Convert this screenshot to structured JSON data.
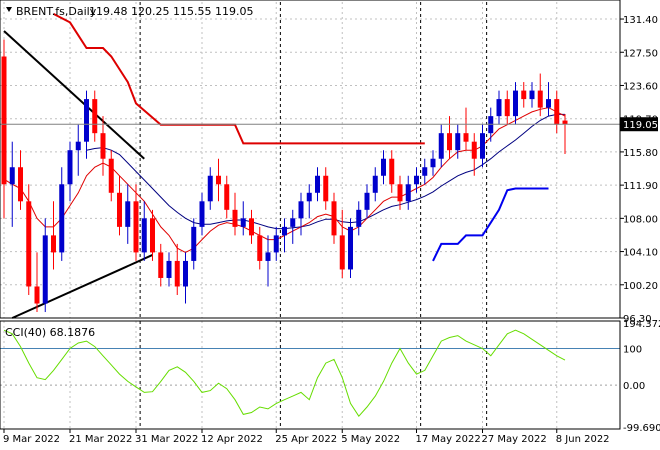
{
  "header": {
    "symbol": "BRENT.fs,Daily",
    "ohlc": "119.48 120.25 115.55 119.05"
  },
  "indicator": {
    "label": "CCI(40) 68.1876"
  },
  "colors": {
    "bull": "#0000cc",
    "bear": "#ff0000",
    "ma_short": "#e00000",
    "ma_long": "#000080",
    "cci": "#66dd00",
    "stop_red": "#dd0000",
    "stop_blue": "#0000ee",
    "trend": "#000000",
    "grid": "#c0c0c0",
    "price_box": "#000000"
  },
  "chart_data": [
    {
      "type": "candlestick",
      "ylim": [
        96.3,
        133.4
      ],
      "y_ticks": [
        "131.40",
        "127.50",
        "123.60",
        "119.70",
        "115.80",
        "111.90",
        "108.00",
        "104.10",
        "100.20",
        "96.30"
      ],
      "x_ticks": [
        "9 Mar 2022",
        "21 Mar 2022",
        "31 Mar 2022",
        "12 Apr 2022",
        "25 Apr 2022",
        "5 May 2022",
        "17 May 2022",
        "27 May 2022",
        "8 Jun 2022"
      ],
      "x_tick_index": [
        0,
        8,
        16,
        24,
        33,
        41,
        50,
        58,
        67
      ],
      "current_price": "119.05",
      "candles": [
        [
          127,
          129,
          108,
          112
        ],
        [
          112,
          117,
          107,
          114
        ],
        [
          114,
          116,
          109,
          110
        ],
        [
          110,
          112,
          99,
          100
        ],
        [
          100,
          104,
          97,
          98
        ],
        [
          98,
          108,
          97,
          106
        ],
        [
          106,
          110,
          102,
          104
        ],
        [
          104,
          114,
          103,
          112
        ],
        [
          112,
          117,
          110,
          116
        ],
        [
          116,
          119,
          113,
          117
        ],
        [
          117,
          123,
          115,
          122
        ],
        [
          122,
          123,
          117,
          118
        ],
        [
          118,
          120,
          113,
          115
        ],
        [
          115,
          116,
          110,
          111
        ],
        [
          111,
          113,
          106,
          107
        ],
        [
          107,
          112,
          105,
          110
        ],
        [
          110,
          112,
          103,
          104
        ],
        [
          104,
          110,
          103,
          108
        ],
        [
          108,
          109,
          103,
          104
        ],
        [
          104,
          105,
          100,
          101
        ],
        [
          101,
          104,
          100,
          103
        ],
        [
          103,
          105,
          99,
          100
        ],
        [
          100,
          104,
          98,
          103
        ],
        [
          103,
          108,
          102,
          107
        ],
        [
          107,
          111,
          106,
          110
        ],
        [
          110,
          114,
          109,
          113
        ],
        [
          113,
          115,
          110,
          112
        ],
        [
          112,
          113,
          108,
          109
        ],
        [
          109,
          111,
          106,
          107
        ],
        [
          107,
          110,
          106,
          108
        ],
        [
          108,
          109,
          105,
          106
        ],
        [
          106,
          107,
          102,
          103
        ],
        [
          103,
          106,
          100,
          104
        ],
        [
          104,
          107,
          103,
          106
        ],
        [
          106,
          108,
          104,
          107
        ],
        [
          107,
          109,
          105,
          108
        ],
        [
          108,
          111,
          106,
          110
        ],
        [
          110,
          112,
          108,
          111
        ],
        [
          111,
          114,
          110,
          113
        ],
        [
          113,
          114,
          109,
          110
        ],
        [
          110,
          111,
          105,
          106
        ],
        [
          106,
          109,
          101,
          102
        ],
        [
          102,
          108,
          101,
          107
        ],
        [
          107,
          110,
          106,
          109
        ],
        [
          109,
          112,
          108,
          111
        ],
        [
          111,
          114,
          110,
          113
        ],
        [
          113,
          116,
          112,
          115
        ],
        [
          115,
          116,
          111,
          112
        ],
        [
          112,
          113,
          109,
          110
        ],
        [
          110,
          113,
          109,
          112
        ],
        [
          112,
          114,
          111,
          113
        ],
        [
          113,
          115,
          112,
          114
        ],
        [
          114,
          116,
          113,
          115
        ],
        [
          115,
          119,
          114,
          118
        ],
        [
          118,
          120,
          115,
          116
        ],
        [
          116,
          119,
          115,
          118
        ],
        [
          118,
          121,
          116,
          117
        ],
        [
          117,
          118,
          113,
          115
        ],
        [
          115,
          119,
          114,
          118
        ],
        [
          118,
          121,
          117,
          120
        ],
        [
          120,
          123,
          119,
          122
        ],
        [
          122,
          123,
          119,
          120
        ],
        [
          120,
          124,
          119,
          123
        ],
        [
          123,
          124,
          121,
          122
        ],
        [
          122,
          124,
          121,
          123
        ],
        [
          123,
          125,
          120,
          121
        ],
        [
          121,
          124,
          120,
          122
        ],
        [
          122,
          123,
          118,
          119
        ],
        [
          119.48,
          120.25,
          115.55,
          119.05
        ]
      ],
      "ma_short": [
        112.6,
        112.0,
        111.5,
        110.0,
        108.0,
        107.0,
        107.0,
        108.0,
        109.5,
        111.0,
        113.0,
        114.0,
        114.5,
        114.0,
        113.0,
        112.0,
        111.0,
        110.0,
        108.5,
        107.0,
        106.0,
        104.5,
        104.0,
        104.5,
        105.5,
        106.5,
        107.2,
        107.5,
        107.3,
        107.0,
        106.5,
        106.0,
        105.5,
        105.5,
        106.0,
        106.5,
        107.0,
        107.5,
        108.2,
        108.5,
        108.2,
        107.0,
        106.5,
        107.0,
        108.0,
        109.0,
        110.0,
        110.5,
        110.5,
        111.0,
        111.5,
        112.0,
        112.8,
        114.0,
        115.0,
        115.8,
        116.0,
        116.0,
        116.5,
        117.5,
        118.5,
        119.0,
        119.5,
        120.0,
        120.5,
        120.8,
        121.0,
        120.5,
        120.0
      ],
      "ma_long": [
        null,
        null,
        null,
        null,
        null,
        null,
        null,
        null,
        null,
        null,
        116.0,
        116.2,
        116.3,
        116.0,
        115.5,
        114.5,
        113.5,
        112.5,
        111.5,
        110.5,
        109.5,
        108.7,
        108.0,
        107.5,
        107.3,
        107.3,
        107.5,
        107.7,
        107.8,
        107.8,
        107.6,
        107.3,
        107.0,
        106.8,
        106.8,
        106.9,
        107.0,
        107.2,
        107.6,
        107.9,
        107.9,
        107.6,
        107.5,
        107.6,
        108.0,
        108.5,
        109.0,
        109.4,
        109.6,
        109.9,
        110.2,
        110.6,
        111.1,
        111.8,
        112.4,
        113.0,
        113.4,
        113.7,
        114.3,
        115.0,
        115.8,
        116.5,
        117.2,
        118.0,
        118.8,
        119.5,
        120.0,
        120.2,
        120.2
      ],
      "stop_red": [
        [
          6,
          132
        ],
        [
          8,
          131
        ],
        [
          10,
          128
        ],
        [
          12,
          128
        ],
        [
          13,
          127
        ],
        [
          15,
          124
        ],
        [
          16,
          121.5
        ],
        [
          19,
          119
        ],
        [
          28,
          119
        ],
        [
          29,
          116.8
        ],
        [
          51,
          116.8
        ]
      ],
      "stop_blue": [
        [
          52,
          103
        ],
        [
          53,
          105
        ],
        [
          55,
          105
        ],
        [
          56,
          106
        ],
        [
          58,
          106
        ],
        [
          59,
          107.5
        ],
        [
          60,
          109
        ],
        [
          61,
          111.3
        ],
        [
          62,
          111.5
        ],
        [
          66,
          111.5
        ]
      ],
      "trendlines": [
        [
          [
            0,
            130
          ],
          [
            17,
            115
          ]
        ],
        [
          [
            1,
            96.3
          ],
          [
            18,
            103.7
          ]
        ]
      ],
      "vlines": [
        16,
        33,
        50,
        58
      ]
    },
    {
      "type": "line",
      "ylim": [
        -120,
        175
      ],
      "y_ticks": [
        "194.3722",
        "100",
        "0.00",
        "-99.6902"
      ],
      "levels": [
        100,
        0
      ],
      "values": [
        150,
        140,
        105,
        60,
        20,
        15,
        40,
        70,
        100,
        115,
        120,
        105,
        80,
        55,
        30,
        10,
        -5,
        -20,
        -18,
        10,
        40,
        50,
        35,
        10,
        -20,
        -15,
        5,
        -10,
        -40,
        -80,
        -75,
        -60,
        -65,
        -50,
        -40,
        -30,
        -20,
        -40,
        20,
        60,
        70,
        20,
        -50,
        -85,
        -60,
        -30,
        10,
        60,
        100,
        60,
        30,
        40,
        80,
        120,
        130,
        135,
        120,
        110,
        100,
        80,
        110,
        140,
        150,
        140,
        125,
        110,
        95,
        80,
        68.1876
      ]
    }
  ]
}
